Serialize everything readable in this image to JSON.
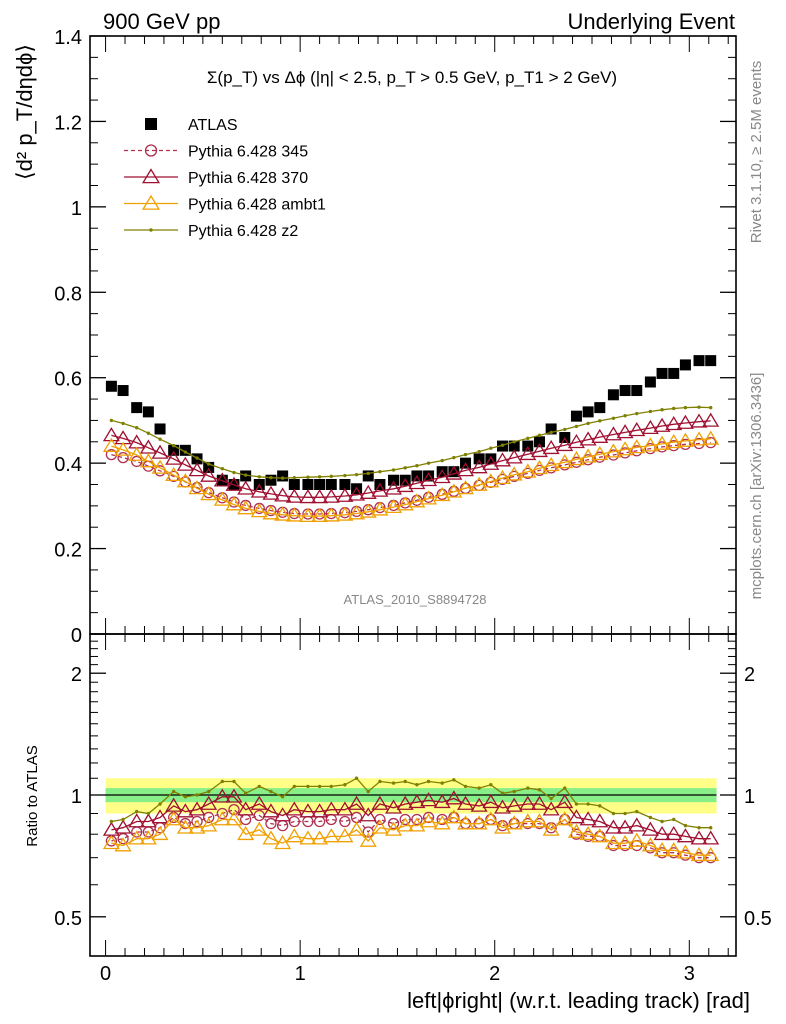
{
  "header": {
    "left": "900 GeV pp",
    "right": "Underlying Event"
  },
  "plot_title": "Σ(p_T) vs Δϕ (|η| < 2.5, p_T > 0.5 GeV, p_T1 > 2 GeV)",
  "side_labels": {
    "rivet": "Rivet 3.1.10, ≥ 2.5M events",
    "mcplots": "mcplots.cern.ch [arXiv:1306.3436]"
  },
  "watermark": "ATLAS_2010_S8894728",
  "colors": {
    "atlas": "#000000",
    "p345": "#b03050",
    "p370": "#a01030",
    "ambt1": "#f0a000",
    "z2": "#808000",
    "band_inner": "#88ee88",
    "band_outer": "#ffff88"
  },
  "chart_data": [
    {
      "type": "scatter",
      "panel": "main",
      "ylabel": "⟨d² p_T/dηdϕ⟩",
      "ylim": [
        0,
        1.4
      ],
      "xlim": [
        -0.08,
        3.24
      ],
      "yticks": [
        "0",
        "0.2",
        "0.4",
        "0.6",
        "0.8",
        "1",
        "1.2",
        "1.4"
      ],
      "legend_position": "top-left",
      "x": [
        0.03,
        0.09,
        0.16,
        0.22,
        0.28,
        0.35,
        0.41,
        0.47,
        0.53,
        0.6,
        0.66,
        0.72,
        0.79,
        0.85,
        0.91,
        0.97,
        1.04,
        1.1,
        1.16,
        1.23,
        1.29,
        1.35,
        1.41,
        1.48,
        1.54,
        1.6,
        1.66,
        1.73,
        1.79,
        1.85,
        1.92,
        1.98,
        2.04,
        2.1,
        2.17,
        2.23,
        2.29,
        2.36,
        2.42,
        2.48,
        2.54,
        2.61,
        2.67,
        2.73,
        2.8,
        2.86,
        2.92,
        2.98,
        3.05,
        3.11
      ],
      "series": [
        {
          "name": "ATLAS",
          "values": [
            0.58,
            0.57,
            0.53,
            0.52,
            0.48,
            0.43,
            0.43,
            0.41,
            0.39,
            0.36,
            0.35,
            0.37,
            0.35,
            0.36,
            0.37,
            0.35,
            0.35,
            0.35,
            0.35,
            0.35,
            0.34,
            0.37,
            0.35,
            0.36,
            0.36,
            0.37,
            0.37,
            0.38,
            0.38,
            0.4,
            0.41,
            0.41,
            0.44,
            0.44,
            0.44,
            0.45,
            0.48,
            0.46,
            0.51,
            0.52,
            0.53,
            0.56,
            0.57,
            0.57,
            0.59,
            0.61,
            0.61,
            0.63,
            0.64,
            0.64
          ]
        },
        {
          "name": "Pythia 6.428 345",
          "values": [
            0.42,
            0.413,
            0.404,
            0.393,
            0.382,
            0.369,
            0.356,
            0.343,
            0.331,
            0.319,
            0.309,
            0.301,
            0.294,
            0.289,
            0.285,
            0.282,
            0.281,
            0.281,
            0.282,
            0.284,
            0.287,
            0.291,
            0.296,
            0.301,
            0.307,
            0.313,
            0.32,
            0.327,
            0.334,
            0.341,
            0.348,
            0.355,
            0.362,
            0.369,
            0.376,
            0.383,
            0.389,
            0.396,
            0.402,
            0.408,
            0.414,
            0.419,
            0.424,
            0.429,
            0.434,
            0.438,
            0.441,
            0.444,
            0.446,
            0.448
          ]
        },
        {
          "name": "Pythia 6.428 370",
          "values": [
            0.465,
            0.458,
            0.448,
            0.436,
            0.424,
            0.41,
            0.396,
            0.383,
            0.37,
            0.359,
            0.349,
            0.34,
            0.333,
            0.328,
            0.324,
            0.321,
            0.32,
            0.32,
            0.321,
            0.323,
            0.326,
            0.33,
            0.335,
            0.34,
            0.346,
            0.353,
            0.36,
            0.367,
            0.375,
            0.383,
            0.39,
            0.398,
            0.406,
            0.413,
            0.421,
            0.428,
            0.435,
            0.442,
            0.449,
            0.455,
            0.461,
            0.467,
            0.472,
            0.477,
            0.482,
            0.487,
            0.491,
            0.494,
            0.497,
            0.499
          ]
        },
        {
          "name": "Pythia 6.428 ambt1",
          "values": [
            0.44,
            0.431,
            0.419,
            0.404,
            0.389,
            0.372,
            0.357,
            0.341,
            0.327,
            0.314,
            0.303,
            0.294,
            0.287,
            0.282,
            0.279,
            0.277,
            0.276,
            0.276,
            0.277,
            0.279,
            0.282,
            0.286,
            0.291,
            0.297,
            0.303,
            0.31,
            0.317,
            0.325,
            0.333,
            0.341,
            0.349,
            0.357,
            0.365,
            0.373,
            0.38,
            0.388,
            0.395,
            0.402,
            0.409,
            0.415,
            0.421,
            0.427,
            0.432,
            0.437,
            0.441,
            0.445,
            0.449,
            0.452,
            0.455,
            0.457
          ]
        },
        {
          "name": "Pythia 6.428 z2",
          "values": [
            0.5,
            0.493,
            0.483,
            0.47,
            0.456,
            0.441,
            0.426,
            0.412,
            0.398,
            0.387,
            0.378,
            0.372,
            0.368,
            0.366,
            0.365,
            0.366,
            0.367,
            0.368,
            0.369,
            0.371,
            0.373,
            0.376,
            0.38,
            0.384,
            0.389,
            0.394,
            0.4,
            0.406,
            0.413,
            0.42,
            0.427,
            0.435,
            0.442,
            0.45,
            0.458,
            0.465,
            0.472,
            0.479,
            0.486,
            0.493,
            0.499,
            0.505,
            0.511,
            0.516,
            0.521,
            0.525,
            0.528,
            0.53,
            0.531,
            0.53
          ]
        }
      ]
    },
    {
      "type": "line",
      "panel": "ratio",
      "ylabel": "Ratio to ATLAS",
      "xlabel": "left|ϕright| (w.r.t. leading track) [rad]",
      "ylim": [
        0.4,
        2.5
      ],
      "log_y": true,
      "yticks": [
        "0.5",
        "1",
        "2"
      ],
      "xticks": [
        "0",
        "1",
        "2",
        "3"
      ],
      "band_inner": [
        0.96,
        1.04
      ],
      "band_outer": [
        0.9,
        1.1
      ],
      "x": [
        0.03,
        0.09,
        0.16,
        0.22,
        0.28,
        0.35,
        0.41,
        0.47,
        0.53,
        0.6,
        0.66,
        0.72,
        0.79,
        0.85,
        0.91,
        0.97,
        1.04,
        1.1,
        1.16,
        1.23,
        1.29,
        1.35,
        1.41,
        1.48,
        1.54,
        1.6,
        1.66,
        1.73,
        1.79,
        1.85,
        1.92,
        1.98,
        2.04,
        2.1,
        2.17,
        2.23,
        2.29,
        2.36,
        2.42,
        2.48,
        2.54,
        2.61,
        2.67,
        2.73,
        2.8,
        2.86,
        2.92,
        2.98,
        3.05,
        3.11
      ],
      "series": [
        {
          "name": "Pythia 6.428 345",
          "values": [
            0.77,
            0.78,
            0.81,
            0.81,
            0.83,
            0.88,
            0.85,
            0.86,
            0.88,
            0.9,
            0.92,
            0.87,
            0.89,
            0.85,
            0.84,
            0.86,
            0.86,
            0.86,
            0.87,
            0.86,
            0.88,
            0.81,
            0.87,
            0.85,
            0.87,
            0.87,
            0.88,
            0.87,
            0.88,
            0.85,
            0.85,
            0.87,
            0.84,
            0.85,
            0.85,
            0.85,
            0.83,
            0.87,
            0.8,
            0.79,
            0.79,
            0.75,
            0.75,
            0.75,
            0.74,
            0.72,
            0.72,
            0.71,
            0.7,
            0.7
          ]
        },
        {
          "name": "Pythia 6.428 370",
          "values": [
            0.82,
            0.83,
            0.86,
            0.86,
            0.88,
            0.94,
            0.91,
            0.92,
            0.95,
            0.99,
            0.99,
            0.92,
            0.95,
            0.91,
            0.89,
            0.92,
            0.91,
            0.91,
            0.92,
            0.92,
            0.95,
            0.89,
            0.95,
            0.93,
            0.95,
            0.96,
            0.97,
            0.96,
            0.98,
            0.95,
            0.94,
            0.96,
            0.93,
            0.94,
            0.95,
            0.95,
            0.92,
            0.96,
            0.88,
            0.87,
            0.86,
            0.83,
            0.83,
            0.84,
            0.82,
            0.8,
            0.8,
            0.79,
            0.78,
            0.78
          ]
        },
        {
          "name": "Pythia 6.428 ambt1",
          "values": [
            0.76,
            0.75,
            0.78,
            0.78,
            0.8,
            0.87,
            0.83,
            0.83,
            0.84,
            0.87,
            0.87,
            0.8,
            0.82,
            0.78,
            0.76,
            0.79,
            0.78,
            0.78,
            0.79,
            0.79,
            0.82,
            0.77,
            0.83,
            0.82,
            0.84,
            0.84,
            0.86,
            0.85,
            0.88,
            0.85,
            0.85,
            0.87,
            0.83,
            0.85,
            0.86,
            0.86,
            0.82,
            0.87,
            0.81,
            0.8,
            0.79,
            0.76,
            0.76,
            0.77,
            0.75,
            0.73,
            0.73,
            0.72,
            0.71,
            0.71
          ]
        },
        {
          "name": "Pythia 6.428 z2",
          "values": [
            0.86,
            0.87,
            0.91,
            0.9,
            0.95,
            1.02,
            0.99,
            1.0,
            1.02,
            1.08,
            1.08,
            1.01,
            1.05,
            1.02,
            0.99,
            1.05,
            1.05,
            1.05,
            1.05,
            1.06,
            1.1,
            1.02,
            1.08,
            1.07,
            1.08,
            1.06,
            1.08,
            1.07,
            1.09,
            1.05,
            1.04,
            1.06,
            1.01,
            1.02,
            1.04,
            1.03,
            0.98,
            1.04,
            0.95,
            0.95,
            0.94,
            0.9,
            0.9,
            0.91,
            0.88,
            0.86,
            0.87,
            0.84,
            0.83,
            0.83
          ]
        }
      ]
    }
  ]
}
